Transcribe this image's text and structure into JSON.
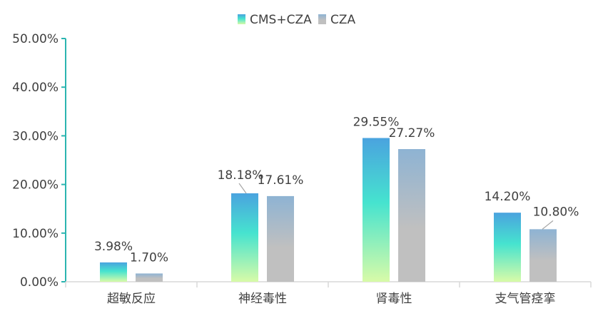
{
  "chart_data": {
    "type": "bar",
    "categories": [
      "超敏反应",
      "神经毒性",
      "肾毒性",
      "支气管痉挛"
    ],
    "series": [
      {
        "name": "CMS+CZA",
        "values": [
          3.98,
          18.18,
          29.55,
          14.2
        ],
        "labels": [
          "3.98%",
          "18.18%",
          "29.55%",
          "14.20%"
        ]
      },
      {
        "name": "CZA",
        "values": [
          1.7,
          17.61,
          27.27,
          10.8
        ],
        "labels": [
          "1.70%",
          "17.61%",
          "27.27%",
          "10.80%"
        ]
      }
    ],
    "ylim": [
      0,
      50
    ],
    "yticks": [
      0,
      10,
      20,
      30,
      40,
      50
    ],
    "ytick_labels": [
      "0.00%",
      "10.00%",
      "20.00%",
      "30.00%",
      "40.00%",
      "50.00%"
    ],
    "legend_position": "top-center",
    "grid": false,
    "colors": {
      "series1_top": "#4AA3DF",
      "series1_mid": "#46E3CF",
      "series1_bottom": "#D8FBA8",
      "series2_top": "#8EB3D3",
      "series2_bottom": "#C0C0C0",
      "y_axis": "#2BB5B0",
      "x_axis": "#D9D9D9",
      "text": "#404040"
    }
  }
}
